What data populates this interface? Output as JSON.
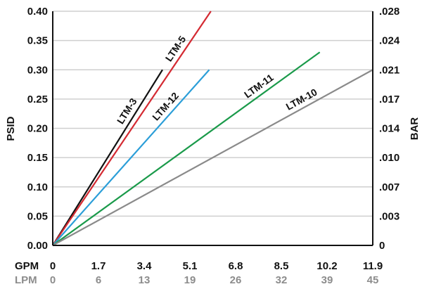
{
  "chart_data": {
    "type": "line",
    "xlabel": "GPM",
    "x2label": "LPM",
    "ylabel": "PSID",
    "y2label": "BAR",
    "xlim": [
      0,
      11.9
    ],
    "ylim": [
      0,
      0.4
    ],
    "x_ticks": [
      "0",
      "1.7",
      "3.4",
      "5.1",
      "6.8",
      "8.5",
      "10.2",
      "11.9"
    ],
    "x2_ticks": [
      "0",
      "6",
      "13",
      "19",
      "26",
      "32",
      "39",
      "45"
    ],
    "y_ticks": [
      "0.00",
      "0.05",
      "0.10",
      "0.15",
      "0.20",
      "0.25",
      "0.30",
      "0.35",
      "0.40"
    ],
    "y2_ticks": [
      "0",
      ".003",
      ".007",
      ".010",
      ".014",
      ".017",
      ".021",
      ".024",
      ".028"
    ],
    "grid": "horizontal",
    "series": [
      {
        "name": "LTM-3",
        "color": "#111111",
        "x": [
          0,
          4.08
        ],
        "y": [
          0,
          0.3
        ]
      },
      {
        "name": "LTM-5",
        "color": "#d42a32",
        "x": [
          0,
          5.88
        ],
        "y": [
          0,
          0.4
        ]
      },
      {
        "name": "LTM-12",
        "color": "#2b9ed8",
        "x": [
          0,
          5.82
        ],
        "y": [
          0,
          0.3
        ]
      },
      {
        "name": "LTM-11",
        "color": "#1a9a4a",
        "x": [
          0,
          9.93
        ],
        "y": [
          0,
          0.33
        ]
      },
      {
        "name": "LTM-10",
        "color": "#8a8a8a",
        "x": [
          0,
          11.9
        ],
        "y": [
          0,
          0.3
        ]
      }
    ]
  }
}
